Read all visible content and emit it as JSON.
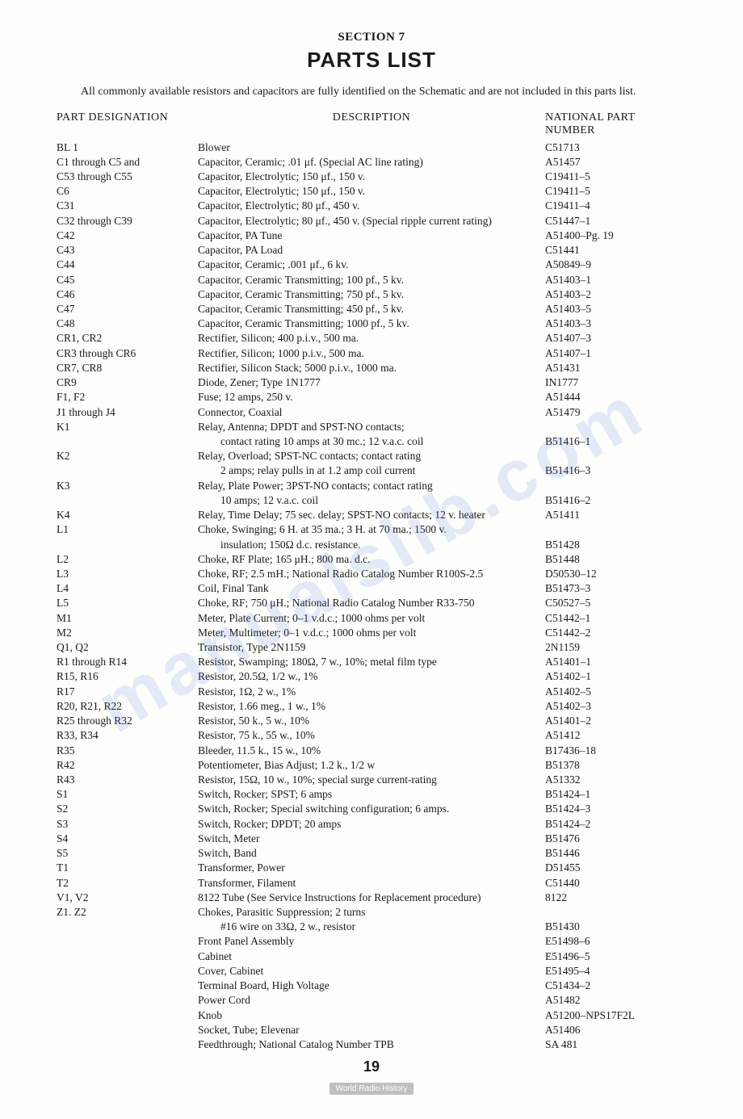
{
  "section_label": "SECTION 7",
  "main_title": "PARTS LIST",
  "intro": "All commonly available resistors and capacitors are fully identified on the Schematic and are not included in this parts list.",
  "headers": {
    "part": "PART DESIGNATION",
    "desc": "DESCRIPTION",
    "num": "NATIONAL PART NUMBER"
  },
  "rows": [
    {
      "part": "BL 1",
      "desc": "Blower",
      "num": "C51713"
    },
    {
      "part": "C1 through C5 and",
      "desc": "Capacitor, Ceramic; .01 μf.  (Special AC line rating)",
      "num": "A51457"
    },
    {
      "part": "C53 through C55",
      "desc": "Capacitor, Electrolytic; 150 μf., 150 v.",
      "num": "C19411–5"
    },
    {
      "part": "C6",
      "desc": "Capacitor, Electrolytic; 150 μf., 150 v.",
      "num": "C19411–5"
    },
    {
      "part": "C31",
      "desc": "Capacitor, Electrolytic; 80 μf., 450 v.",
      "num": "C19411–4"
    },
    {
      "part": "C32 through C39",
      "desc": "Capacitor, Electrolytic; 80 μf., 450 v. (Special ripple current rating)",
      "num": "C51447–1"
    },
    {
      "part": "C42",
      "desc": "Capacitor, PA Tune",
      "num": "A51400–Pg. 19"
    },
    {
      "part": "C43",
      "desc": "Capacitor, PA Load",
      "num": "C51441"
    },
    {
      "part": "C44",
      "desc": "Capacitor, Ceramic; .001 μf., 6 kv.",
      "num": "A50849–9"
    },
    {
      "part": "C45",
      "desc": "Capacitor, Ceramic  Transmitting; 100 pf., 5 kv.",
      "num": "A51403–1"
    },
    {
      "part": "C46",
      "desc": "Capacitor, Ceramic Transmitting; 750 pf., 5 kv.",
      "num": "A51403–2"
    },
    {
      "part": "C47",
      "desc": "Capacitor, Ceramic Transmitting; 450 pf., 5 kv.",
      "num": "A51403–5"
    },
    {
      "part": "C48",
      "desc": "Capacitor, Ceramic Transmitting; 1000 pf., 5 kv.",
      "num": "A51403–3"
    },
    {
      "part": "CR1, CR2",
      "desc": "Rectifier, Silicon; 400 p.i.v., 500 ma.",
      "num": "A51407–3"
    },
    {
      "part": "CR3 through CR6",
      "desc": "Rectifier, Silicon; 1000 p.i.v., 500 ma.",
      "num": "A51407–1"
    },
    {
      "part": "CR7, CR8",
      "desc": "Rectifier, Silicon Stack; 5000 p.i.v., 1000 ma.",
      "num": "A51431"
    },
    {
      "part": "CR9",
      "desc": "Diode, Zener; Type 1N1777",
      "num": "IN1777"
    },
    {
      "part": "F1, F2",
      "desc": "Fuse; 12 amps, 250 v.",
      "num": "A51444"
    },
    {
      "part": "J1 through J4",
      "desc": "Connector, Coaxial",
      "num": "A51479"
    },
    {
      "part": "K1",
      "desc": "Relay, Antenna; DPDT and SPST-NO contacts;",
      "num": ""
    },
    {
      "part": "",
      "cont": true,
      "desc": "contact rating 10 amps at 30 mc.; 12 v.a.c. coil",
      "num": "B51416–1"
    },
    {
      "part": "K2",
      "desc": "Relay, Overload; SPST-NC contacts; contact rating",
      "num": ""
    },
    {
      "part": "",
      "cont": true,
      "desc": "2 amps; relay pulls in at 1.2 amp coil current",
      "num": "B51416–3"
    },
    {
      "part": "K3",
      "desc": "Relay, Plate Power; 3PST-NO contacts; contact rating",
      "num": ""
    },
    {
      "part": "",
      "cont": true,
      "desc": "10 amps; 12 v.a.c. coil",
      "num": "B51416–2"
    },
    {
      "part": "K4",
      "desc": "Relay, Time Delay; 75 sec. delay; SPST-NO contacts; 12 v. heater",
      "num": "A51411"
    },
    {
      "part": "L1",
      "desc": "Choke, Swinging; 6 H. at 35 ma.; 3 H. at 70 ma.; 1500 v.",
      "num": ""
    },
    {
      "part": "",
      "cont": true,
      "desc": "insulation; 150Ω  d.c. resistance.",
      "num": "B51428"
    },
    {
      "part": "L2",
      "desc": "Choke, RF Plate; 165 μH.; 800 ma. d.c.",
      "num": "B51448"
    },
    {
      "part": "L3",
      "desc": "Choke, RF; 2.5 mH.; National Radio Catalog Number R100S-2.5",
      "num": "D50530–12"
    },
    {
      "part": "L4",
      "desc": "Coil, Final Tank",
      "num": "B51473–3"
    },
    {
      "part": "L5",
      "desc": "Choke, RF; 750 μH.; National Radio Catalog Number R33-750",
      "num": "C50527–5"
    },
    {
      "part": "M1",
      "desc": "Meter, Plate Current; 0–1 v.d.c.; 1000 ohms per volt",
      "num": "C51442–1"
    },
    {
      "part": "M2",
      "desc": "Meter, Multimeter; 0–1 v.d.c.; 1000 ohms per volt",
      "num": "C51442–2"
    },
    {
      "part": "Q1, Q2",
      "desc": "Transistor, Type 2N1159",
      "num": "2N1159"
    },
    {
      "part": "R1 through R14",
      "desc": "Resistor, Swamping; 180Ω, 7 w., 10%; metal film type",
      "num": "A51401–1"
    },
    {
      "part": "R15, R16",
      "desc": "Resistor, 20.5Ω,  1/2 w., 1%",
      "num": "A51402–1"
    },
    {
      "part": "R17",
      "desc": "Resistor, 1Ω,  2 w., 1%",
      "num": "A51402–5"
    },
    {
      "part": "R20, R21, R22",
      "desc": "Resistor, 1.66 meg., 1 w., 1%",
      "num": "A51402–3"
    },
    {
      "part": "R25 through R32",
      "desc": "Resistor, 50 k., 5 w., 10%",
      "num": "A51401–2"
    },
    {
      "part": "R33, R34",
      "desc": "Resistor, 75 k., 55 w., 10%",
      "num": "A51412"
    },
    {
      "part": "R35",
      "desc": "Bleeder, 11.5 k., 15 w., 10%",
      "num": "B17436–18"
    },
    {
      "part": "R42",
      "desc": "Potentiometer, Bias Adjust; 1.2 k., 1/2 w",
      "num": "B51378"
    },
    {
      "part": "R43",
      "desc": "Resistor, 15Ω,  10 w., 10%; special surge current-rating",
      "num": "A51332"
    },
    {
      "part": "S1",
      "desc": "Switch, Rocker; SPST; 6 amps",
      "num": "B51424–1"
    },
    {
      "part": "S2",
      "desc": "Switch, Rocker; Special switching configuration; 6 amps.",
      "num": "B51424–3"
    },
    {
      "part": "S3",
      "desc": "Switch, Rocker; DPDT; 20 amps",
      "num": "B51424–2"
    },
    {
      "part": "S4",
      "desc": "Switch, Meter",
      "num": "B51476"
    },
    {
      "part": "S5",
      "desc": "Switch, Band",
      "num": "B51446"
    },
    {
      "part": "T1",
      "desc": "Transformer, Power",
      "num": "D51455"
    },
    {
      "part": "T2",
      "desc": "Transformer, Filament",
      "num": "C51440"
    },
    {
      "part": "V1, V2",
      "desc": "8122 Tube (See Service Instructions for Replacement procedure)",
      "num": "8122"
    },
    {
      "part": "Z1. Z2",
      "desc": "Chokes, Parasitic Suppression; 2 turns",
      "num": ""
    },
    {
      "part": "",
      "cont": true,
      "desc": "#16 wire on 33Ω,  2 w., resistor",
      "num": "B51430"
    },
    {
      "part": "",
      "desc": "Front Panel Assembly",
      "num": "E51498–6"
    },
    {
      "part": "",
      "desc": "Cabinet",
      "num": "E51496–5"
    },
    {
      "part": "",
      "desc": "Cover, Cabinet",
      "num": "E51495–4"
    },
    {
      "part": "",
      "desc": "Terminal Board, High Voltage",
      "num": "C51434–2"
    },
    {
      "part": "",
      "desc": "Power Cord",
      "num": "A51482"
    },
    {
      "part": "",
      "desc": "Knob",
      "num": "A51200–NPS17F2L"
    },
    {
      "part": "",
      "desc": "Socket, Tube; Elevenar",
      "num": "A51406"
    },
    {
      "part": "",
      "desc": "Feedthrough; National Catalog Number TPB",
      "num": "SA 481"
    }
  ],
  "page_number": "19",
  "footer_badge": "World Radio History",
  "watermark": "manualslib.com"
}
